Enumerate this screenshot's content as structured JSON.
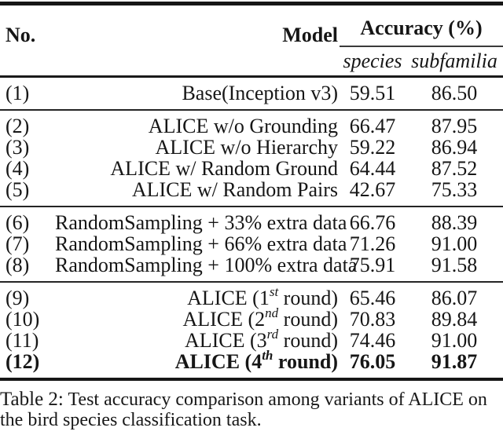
{
  "table": {
    "header": {
      "no": "No.",
      "model": "Model",
      "accuracy": "Accuracy (%)",
      "species": "species",
      "subfamilia": "subfamilia"
    },
    "rows": [
      {
        "no": "(1)",
        "model_prefix": "Base(Inception v3)",
        "model_sup": "",
        "model_suffix": "",
        "species": "59.51",
        "subfamilia": "86.50"
      },
      {
        "no": "(2)",
        "model_prefix": "ALICE w/o Grounding",
        "model_sup": "",
        "model_suffix": "",
        "species": "66.47",
        "subfamilia": "87.95"
      },
      {
        "no": "(3)",
        "model_prefix": "ALICE w/o Hierarchy",
        "model_sup": "",
        "model_suffix": "",
        "species": "59.22",
        "subfamilia": "86.94"
      },
      {
        "no": "(4)",
        "model_prefix": "ALICE w/ Random Ground",
        "model_sup": "",
        "model_suffix": "",
        "species": "64.44",
        "subfamilia": "87.52"
      },
      {
        "no": "(5)",
        "model_prefix": "ALICE w/ Random Pairs",
        "model_sup": "",
        "model_suffix": "",
        "species": "42.67",
        "subfamilia": "75.33"
      },
      {
        "no": "(6)",
        "model_prefix": "RandomSampling + 33% extra data",
        "model_sup": "",
        "model_suffix": "",
        "species": "66.76",
        "subfamilia": "88.39"
      },
      {
        "no": "(7)",
        "model_prefix": "RandomSampling + 66% extra data",
        "model_sup": "",
        "model_suffix": "",
        "species": "71.26",
        "subfamilia": "91.00"
      },
      {
        "no": "(8)",
        "model_prefix": "RandomSampling + 100% extra data",
        "model_sup": "",
        "model_suffix": "",
        "species": "75.91",
        "subfamilia": "91.58"
      },
      {
        "no": "(9)",
        "model_prefix": "ALICE (1",
        "model_sup": "st",
        "model_suffix": " round)",
        "species": "65.46",
        "subfamilia": "86.07"
      },
      {
        "no": "(10)",
        "model_prefix": "ALICE (2",
        "model_sup": "nd",
        "model_suffix": " round)",
        "species": "70.83",
        "subfamilia": "89.84"
      },
      {
        "no": "(11)",
        "model_prefix": "ALICE (3",
        "model_sup": "rd",
        "model_suffix": " round)",
        "species": "74.46",
        "subfamilia": "91.00"
      },
      {
        "no": "(12)",
        "model_prefix": "ALICE (4",
        "model_sup": "th",
        "model_suffix": " round)",
        "species": "76.05",
        "subfamilia": "91.87"
      }
    ]
  },
  "caption": {
    "label": "Table 2:",
    "text": "Test accuracy comparison among variants of ALICE on the bird species classification task."
  }
}
